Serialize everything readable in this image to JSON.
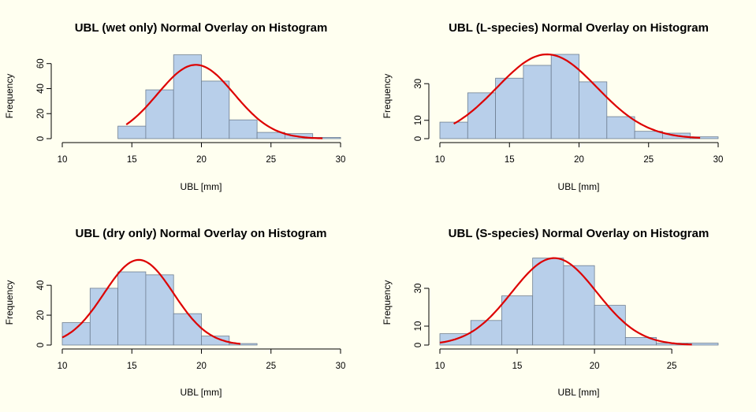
{
  "figure": {
    "background": "#fffff0"
  },
  "style": {
    "bar_fill": "#b8cfea",
    "bar_stroke": "#6f7f92",
    "curve": "#dd0000"
  },
  "chart_data": [
    {
      "type": "bar",
      "title": "UBL (wet only) Normal Overlay on Histogram",
      "xlabel": "UBL [mm]",
      "ylabel": "Frequency",
      "xlim": [
        10,
        30
      ],
      "ylim": [
        0,
        68
      ],
      "xticks": [
        10,
        15,
        20,
        25,
        30
      ],
      "yticks": [
        0,
        20,
        40,
        60
      ],
      "bins": [
        [
          14,
          16,
          10
        ],
        [
          16,
          18,
          39
        ],
        [
          18,
          20,
          67
        ],
        [
          20,
          22,
          46
        ],
        [
          22,
          24,
          15
        ],
        [
          24,
          26,
          5
        ],
        [
          26,
          28,
          4
        ],
        [
          28,
          30,
          1
        ]
      ],
      "normal_curve": {
        "mean": 19.6,
        "sd": 2.75,
        "peak": 59,
        "x_range": [
          14.6,
          28.7
        ]
      }
    },
    {
      "type": "bar",
      "title": "UBL (L-species) Normal Overlay on Histogram",
      "xlabel": "UBL [mm]",
      "ylabel": "Frequency",
      "xlim": [
        10,
        30
      ],
      "ylim": [
        0,
        46
      ],
      "xticks": [
        10,
        15,
        20,
        25,
        30
      ],
      "yticks": [
        0,
        10,
        30
      ],
      "bins": [
        [
          10,
          12,
          9
        ],
        [
          12,
          14,
          25
        ],
        [
          14,
          16,
          33
        ],
        [
          16,
          18,
          40
        ],
        [
          18,
          20,
          46
        ],
        [
          20,
          22,
          31
        ],
        [
          22,
          24,
          12
        ],
        [
          24,
          26,
          4
        ],
        [
          26,
          28,
          3
        ],
        [
          28,
          30,
          1
        ]
      ],
      "normal_curve": {
        "mean": 17.7,
        "sd": 3.6,
        "peak": 46,
        "x_range": [
          11,
          28.7
        ]
      }
    },
    {
      "type": "bar",
      "title": "UBL (dry only) Normal Overlay on Histogram",
      "xlabel": "UBL [mm]",
      "ylabel": "Frequency",
      "xlim": [
        10,
        30
      ],
      "ylim": [
        0,
        58
      ],
      "xticks": [
        10,
        15,
        20,
        25,
        30
      ],
      "yticks": [
        0,
        20,
        40
      ],
      "bins": [
        [
          10,
          12,
          15
        ],
        [
          12,
          14,
          38
        ],
        [
          14,
          16,
          49
        ],
        [
          16,
          18,
          47
        ],
        [
          18,
          20,
          21
        ],
        [
          20,
          22,
          6
        ],
        [
          22,
          24,
          1
        ]
      ],
      "normal_curve": {
        "mean": 15.5,
        "sd": 2.5,
        "peak": 57,
        "x_range": [
          10,
          22.8
        ]
      }
    },
    {
      "type": "bar",
      "title": "UBL (S-species) Normal Overlay on Histogram",
      "xlabel": "UBL [mm]",
      "ylabel": "Frequency",
      "xlim": [
        10,
        28
      ],
      "ylim": [
        0,
        45
      ],
      "xticks": [
        10,
        15,
        20,
        25
      ],
      "yticks": [
        0,
        10,
        30
      ],
      "bins": [
        [
          10,
          12,
          6
        ],
        [
          12,
          14,
          13
        ],
        [
          14,
          16,
          26
        ],
        [
          16,
          18,
          46
        ],
        [
          18,
          20,
          42
        ],
        [
          20,
          22,
          21
        ],
        [
          22,
          24,
          4
        ],
        [
          24,
          26,
          1
        ],
        [
          26,
          28,
          1
        ]
      ],
      "normal_curve": {
        "mean": 17.4,
        "sd": 2.75,
        "peak": 46,
        "x_range": [
          10,
          26.3
        ]
      }
    }
  ]
}
